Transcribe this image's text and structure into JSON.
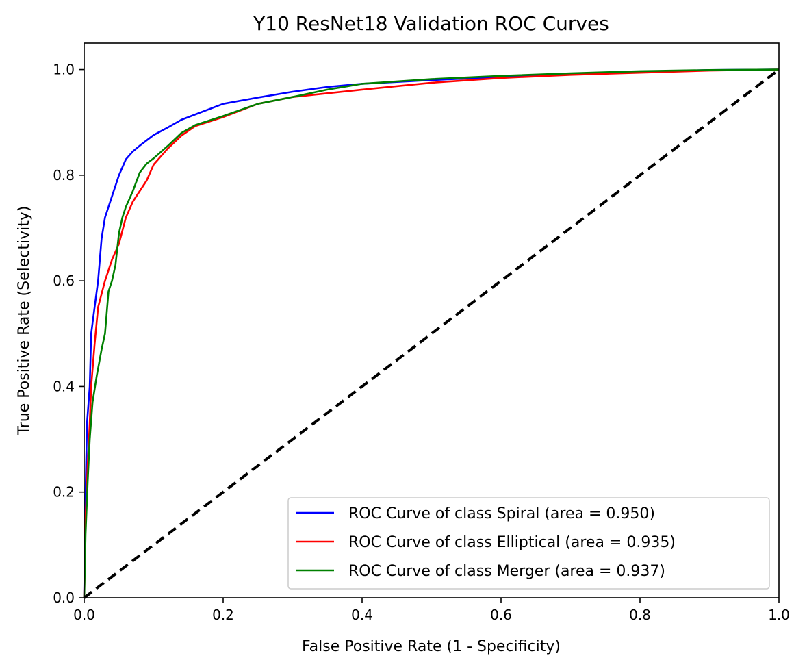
{
  "chart_data": {
    "type": "line",
    "title": "Y10 ResNet18 Validation ROC Curves",
    "xlabel": "False Positive Rate (1 - Specificity)",
    "ylabel": "True Positive Rate (Selectivity)",
    "xlim": [
      0.0,
      1.0
    ],
    "ylim": [
      0.0,
      1.05
    ],
    "x_ticks": [
      "0.0",
      "0.2",
      "0.4",
      "0.6",
      "0.8",
      "1.0"
    ],
    "y_ticks": [
      "0.0",
      "0.2",
      "0.4",
      "0.6",
      "0.8",
      "1.0"
    ],
    "grid": false,
    "legend_position": "bottom-right",
    "series": [
      {
        "name": "ROC Curve of class Spiral (area = 0.950)",
        "color": "#0000ff",
        "points": [
          [
            0.0,
            0.0
          ],
          [
            0.002,
            0.2
          ],
          [
            0.004,
            0.33
          ],
          [
            0.008,
            0.4
          ],
          [
            0.01,
            0.5
          ],
          [
            0.015,
            0.55
          ],
          [
            0.02,
            0.6
          ],
          [
            0.025,
            0.68
          ],
          [
            0.03,
            0.72
          ],
          [
            0.035,
            0.74
          ],
          [
            0.04,
            0.76
          ],
          [
            0.045,
            0.78
          ],
          [
            0.05,
            0.8
          ],
          [
            0.06,
            0.83
          ],
          [
            0.07,
            0.845
          ],
          [
            0.08,
            0.856
          ],
          [
            0.1,
            0.876
          ],
          [
            0.12,
            0.89
          ],
          [
            0.14,
            0.905
          ],
          [
            0.16,
            0.915
          ],
          [
            0.2,
            0.935
          ],
          [
            0.25,
            0.947
          ],
          [
            0.3,
            0.958
          ],
          [
            0.35,
            0.967
          ],
          [
            0.4,
            0.973
          ],
          [
            0.5,
            0.98
          ],
          [
            0.6,
            0.986
          ],
          [
            0.7,
            0.992
          ],
          [
            0.8,
            0.996
          ],
          [
            0.9,
            0.999
          ],
          [
            1.0,
            1.0
          ]
        ]
      },
      {
        "name": "ROC Curve of class Elliptical (area = 0.935)",
        "color": "#ff0000",
        "points": [
          [
            0.0,
            0.0
          ],
          [
            0.002,
            0.15
          ],
          [
            0.005,
            0.25
          ],
          [
            0.008,
            0.33
          ],
          [
            0.01,
            0.4
          ],
          [
            0.015,
            0.48
          ],
          [
            0.02,
            0.55
          ],
          [
            0.03,
            0.6
          ],
          [
            0.04,
            0.64
          ],
          [
            0.05,
            0.67
          ],
          [
            0.06,
            0.72
          ],
          [
            0.07,
            0.75
          ],
          [
            0.08,
            0.77
          ],
          [
            0.09,
            0.79
          ],
          [
            0.1,
            0.82
          ],
          [
            0.12,
            0.85
          ],
          [
            0.14,
            0.875
          ],
          [
            0.16,
            0.893
          ],
          [
            0.2,
            0.91
          ],
          [
            0.25,
            0.935
          ],
          [
            0.3,
            0.948
          ],
          [
            0.35,
            0.955
          ],
          [
            0.4,
            0.962
          ],
          [
            0.5,
            0.975
          ],
          [
            0.6,
            0.984
          ],
          [
            0.7,
            0.99
          ],
          [
            0.8,
            0.994
          ],
          [
            0.9,
            0.998
          ],
          [
            1.0,
            1.0
          ]
        ]
      },
      {
        "name": "ROC Curve of class Merger (area = 0.937)",
        "color": "#008000",
        "points": [
          [
            0.0,
            0.0
          ],
          [
            0.002,
            0.12
          ],
          [
            0.005,
            0.22
          ],
          [
            0.008,
            0.3
          ],
          [
            0.012,
            0.37
          ],
          [
            0.018,
            0.42
          ],
          [
            0.025,
            0.47
          ],
          [
            0.03,
            0.5
          ],
          [
            0.035,
            0.58
          ],
          [
            0.04,
            0.6
          ],
          [
            0.045,
            0.63
          ],
          [
            0.05,
            0.69
          ],
          [
            0.055,
            0.72
          ],
          [
            0.06,
            0.74
          ],
          [
            0.07,
            0.77
          ],
          [
            0.08,
            0.805
          ],
          [
            0.09,
            0.822
          ],
          [
            0.1,
            0.832
          ],
          [
            0.12,
            0.855
          ],
          [
            0.14,
            0.88
          ],
          [
            0.16,
            0.895
          ],
          [
            0.2,
            0.912
          ],
          [
            0.25,
            0.935
          ],
          [
            0.3,
            0.948
          ],
          [
            0.35,
            0.962
          ],
          [
            0.4,
            0.973
          ],
          [
            0.5,
            0.982
          ],
          [
            0.6,
            0.988
          ],
          [
            0.7,
            0.993
          ],
          [
            0.8,
            0.997
          ],
          [
            0.9,
            0.999
          ],
          [
            1.0,
            1.0
          ]
        ]
      },
      {
        "name": "",
        "color": "#000000",
        "dashed": true,
        "points": [
          [
            0.0,
            0.0
          ],
          [
            1.0,
            1.0
          ]
        ]
      }
    ]
  }
}
